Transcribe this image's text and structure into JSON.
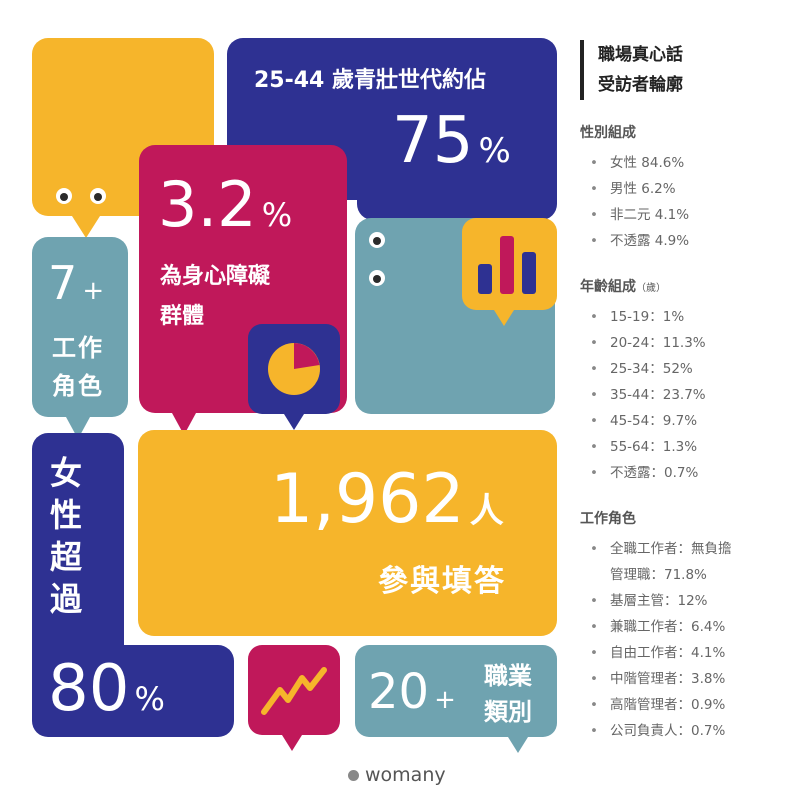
{
  "tiles": {
    "age": {
      "label": "25-44 歲青壯世代約佔",
      "value": "75",
      "unit": "%"
    },
    "mental": {
      "value": "3.2",
      "unit": "%",
      "line1": "為身心障礙",
      "line2": "群體"
    },
    "roles": {
      "value": "7",
      "plus": "+",
      "line1": "工作",
      "line2": "角色"
    },
    "women": {
      "chars": [
        "女",
        "性",
        "超",
        "過"
      ],
      "value": "80",
      "unit": "%"
    },
    "respondents": {
      "value": "1,962",
      "unit": "人",
      "caption": "參與填答"
    },
    "jobs": {
      "value": "20",
      "plus": "+",
      "line1": "職業",
      "line2": "類別"
    }
  },
  "sidebar": {
    "title_line1": "職場真心話",
    "title_line2": "受訪者輪廓",
    "gender": {
      "heading": "性別組成",
      "items": [
        "女性 84.6%",
        "男性 6.2%",
        "非二元 4.1%",
        "不透露 4.9%"
      ]
    },
    "age": {
      "heading": "年齡組成",
      "heading_unit": "（歲）",
      "items": [
        "15-19：1%",
        "20-24：11.3%",
        "25-34：52%",
        "35-44：23.7%",
        "45-54：9.7%",
        "55-64：1.3%",
        "不透露：0.7%"
      ]
    },
    "role": {
      "heading": "工作角色",
      "items": [
        {
          "line1": "全職工作者：無負擔",
          "line2": "管理職：71.8%"
        },
        {
          "line1": "基層主管：12%"
        },
        {
          "line1": "兼職工作者：6.4%"
        },
        {
          "line1": "自由工作者：4.1%"
        },
        {
          "line1": "中階管理者：3.8%"
        },
        {
          "line1": "高階管理者：0.9%"
        },
        {
          "line1": "公司負責人：0.7%"
        }
      ]
    }
  },
  "logo": {
    "text": "womany"
  },
  "colors": {
    "yellow": "#f6b52b",
    "navy": "#2e3192",
    "teal": "#6fa3b0",
    "crimson": "#c0185a"
  },
  "icons": [
    "bar-chart-icon",
    "pie-chart-icon",
    "line-chart-icon",
    "eyes-icon"
  ]
}
